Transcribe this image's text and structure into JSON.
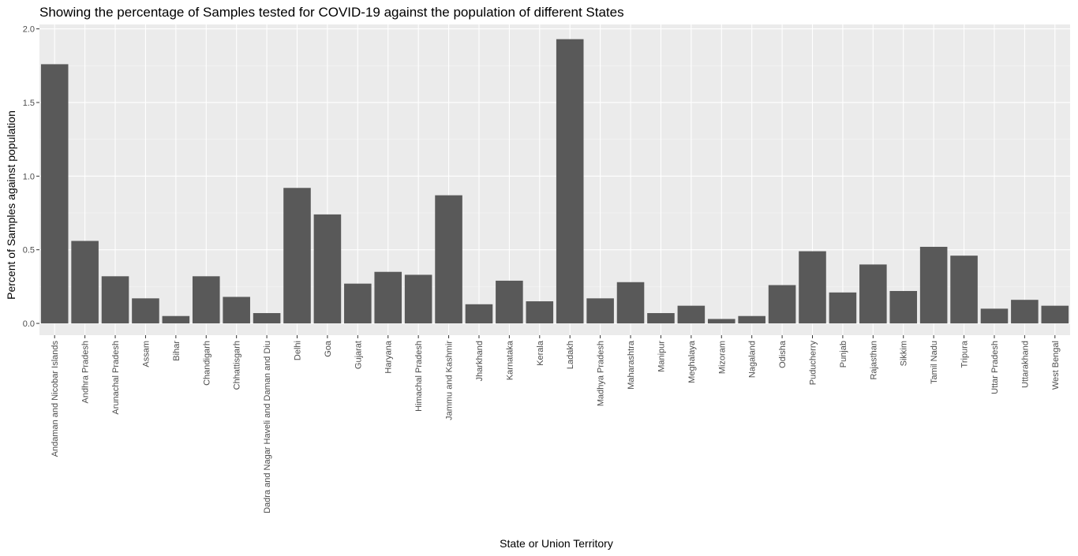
{
  "chart_data": {
    "type": "bar",
    "title": "Showing the percentage of Samples tested for COVID-19 against the population of different States",
    "xlabel": "State or Union Territory",
    "ylabel": "Percent of Samples against population",
    "ylim": [
      -0.08,
      2.03
    ],
    "yticks": [
      0.0,
      0.5,
      1.0,
      1.5,
      2.0
    ],
    "ytick_labels": [
      "0.0",
      "0.5",
      "1.0",
      "1.5",
      "2.0"
    ],
    "grid": true,
    "categories": [
      "Andaman and Nicobar Islands",
      "Andhra Pradesh",
      "Arunachal Pradesh",
      "Assam",
      "Bihar",
      "Chandigarh",
      "Chhattisgarh",
      "Dadra and Nagar Haveli and Daman and Diu",
      "Delhi",
      "Goa",
      "Gujarat",
      "Haryana",
      "Himachal Pradesh",
      "Jammu and Kashmir",
      "Jharkhand",
      "Karnataka",
      "Kerala",
      "Ladakh",
      "Madhya Pradesh",
      "Maharashtra",
      "Manipur",
      "Meghalaya",
      "Mizoram",
      "Nagaland",
      "Odisha",
      "Puducherry",
      "Punjab",
      "Rajasthan",
      "Sikkim",
      "Tamil Nadu",
      "Tripura",
      "Uttar Pradesh",
      "Uttarakhand",
      "West Bengal"
    ],
    "values": [
      1.76,
      0.56,
      0.32,
      0.17,
      0.05,
      0.32,
      0.18,
      0.07,
      0.92,
      0.74,
      0.27,
      0.35,
      0.33,
      0.87,
      0.13,
      0.29,
      0.15,
      1.93,
      0.17,
      0.28,
      0.07,
      0.12,
      0.03,
      0.05,
      0.26,
      0.49,
      0.21,
      0.4,
      0.22,
      0.52,
      0.46,
      0.1,
      0.16,
      0.12
    ],
    "colors": {
      "panel_background": "#ebebeb",
      "grid_major": "#ffffff",
      "grid_minor": "#f5f5f5",
      "bar_fill": "#595959",
      "tick_color": "#333333",
      "tick_label_color": "#4d4d4d"
    }
  }
}
